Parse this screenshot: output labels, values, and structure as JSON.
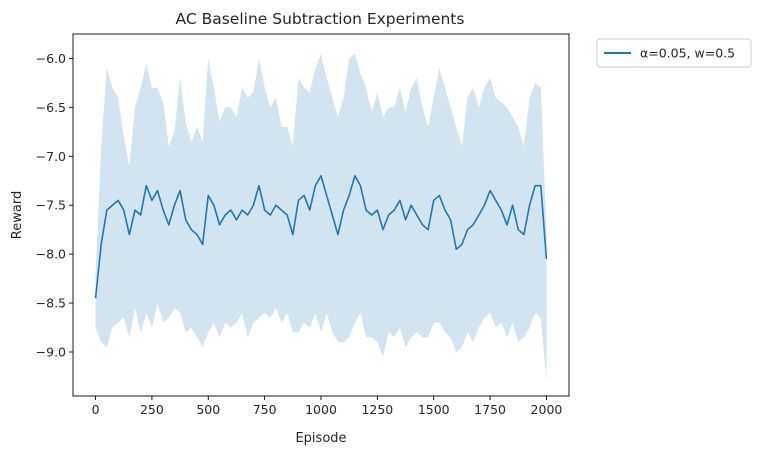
{
  "chart_data": {
    "type": "line",
    "title": "AC Baseline Subtraction Experiments",
    "xlabel": "Episode",
    "ylabel": "Reward",
    "xlim": [
      -100,
      2100
    ],
    "ylim": [
      -9.45,
      -5.75
    ],
    "xticks": [
      0,
      250,
      500,
      750,
      1000,
      1250,
      1500,
      1750,
      2000
    ],
    "xtick_labels": [
      "0",
      "250",
      "500",
      "750",
      "1000",
      "1250",
      "1500",
      "1750",
      "2000"
    ],
    "yticks": [
      -9.0,
      -8.5,
      -8.0,
      -7.5,
      -7.0,
      -6.5,
      -6.0
    ],
    "ytick_labels": [
      "−9.0",
      "−8.5",
      "−8.0",
      "−7.5",
      "−7.0",
      "−6.5",
      "−6.0"
    ],
    "grid": false,
    "legend_position": "outside-top-right",
    "series": [
      {
        "name": "α=0.05, w=0.5",
        "color": "#1f77b4",
        "band_color": "#1f77b4",
        "x": [
          0,
          25,
          50,
          75,
          100,
          125,
          150,
          175,
          200,
          225,
          250,
          275,
          300,
          325,
          350,
          375,
          400,
          425,
          450,
          475,
          500,
          525,
          550,
          575,
          600,
          625,
          650,
          675,
          700,
          725,
          750,
          775,
          800,
          825,
          850,
          875,
          900,
          925,
          950,
          975,
          1000,
          1025,
          1050,
          1075,
          1100,
          1125,
          1150,
          1175,
          1200,
          1225,
          1250,
          1275,
          1300,
          1325,
          1350,
          1375,
          1400,
          1425,
          1450,
          1475,
          1500,
          1525,
          1550,
          1575,
          1600,
          1625,
          1650,
          1675,
          1700,
          1725,
          1750,
          1775,
          1800,
          1825,
          1850,
          1875,
          1900,
          1925,
          1950,
          1975,
          2000
        ],
        "mean": [
          -8.45,
          -7.9,
          -7.55,
          -7.5,
          -7.45,
          -7.55,
          -7.8,
          -7.55,
          -7.6,
          -7.3,
          -7.45,
          -7.35,
          -7.55,
          -7.7,
          -7.5,
          -7.35,
          -7.65,
          -7.75,
          -7.8,
          -7.9,
          -7.4,
          -7.5,
          -7.7,
          -7.6,
          -7.55,
          -7.65,
          -7.55,
          -7.6,
          -7.5,
          -7.3,
          -7.55,
          -7.6,
          -7.5,
          -7.55,
          -7.6,
          -7.8,
          -7.45,
          -7.4,
          -7.55,
          -7.3,
          -7.2,
          -7.4,
          -7.6,
          -7.8,
          -7.55,
          -7.4,
          -7.2,
          -7.3,
          -7.55,
          -7.6,
          -7.55,
          -7.75,
          -7.6,
          -7.55,
          -7.45,
          -7.65,
          -7.5,
          -7.6,
          -7.7,
          -7.75,
          -7.45,
          -7.4,
          -7.55,
          -7.65,
          -7.95,
          -7.9,
          -7.75,
          -7.7,
          -7.6,
          -7.5,
          -7.35,
          -7.45,
          -7.55,
          -7.7,
          -7.5,
          -7.75,
          -7.8,
          -7.5,
          -7.3,
          -7.3,
          -8.05
        ],
        "upper": [
          -8.2,
          -6.9,
          -6.1,
          -6.3,
          -6.4,
          -6.8,
          -7.1,
          -6.5,
          -6.3,
          -6.05,
          -6.3,
          -6.3,
          -6.45,
          -6.9,
          -6.75,
          -6.2,
          -6.65,
          -6.85,
          -6.7,
          -6.85,
          -6.0,
          -6.3,
          -6.65,
          -6.5,
          -6.5,
          -6.6,
          -6.3,
          -6.4,
          -6.35,
          -6.0,
          -6.3,
          -6.5,
          -6.4,
          -6.7,
          -6.7,
          -6.9,
          -6.2,
          -6.3,
          -6.35,
          -6.1,
          -5.95,
          -6.2,
          -6.4,
          -6.6,
          -6.4,
          -6.0,
          -5.95,
          -6.15,
          -6.3,
          -6.55,
          -6.35,
          -6.6,
          -6.5,
          -6.5,
          -6.3,
          -6.55,
          -6.3,
          -6.2,
          -6.5,
          -6.7,
          -6.4,
          -6.1,
          -6.3,
          -6.5,
          -6.7,
          -6.9,
          -6.4,
          -6.3,
          -6.5,
          -6.3,
          -6.2,
          -6.4,
          -6.45,
          -6.5,
          -6.6,
          -6.7,
          -6.9,
          -6.4,
          -6.25,
          -6.3,
          -7.75
        ],
        "lower": [
          -8.75,
          -8.9,
          -8.95,
          -8.75,
          -8.7,
          -8.65,
          -8.85,
          -8.55,
          -8.8,
          -8.6,
          -8.75,
          -8.5,
          -8.7,
          -8.65,
          -8.55,
          -8.6,
          -8.8,
          -8.75,
          -8.85,
          -8.95,
          -8.8,
          -8.7,
          -8.85,
          -8.7,
          -8.75,
          -8.7,
          -8.6,
          -8.85,
          -8.7,
          -8.65,
          -8.6,
          -8.65,
          -8.55,
          -8.7,
          -8.6,
          -8.8,
          -8.8,
          -8.7,
          -8.75,
          -8.6,
          -8.8,
          -8.6,
          -8.8,
          -8.9,
          -8.9,
          -8.85,
          -8.7,
          -8.6,
          -8.85,
          -8.85,
          -8.9,
          -9.05,
          -8.8,
          -8.85,
          -8.75,
          -8.95,
          -8.85,
          -8.8,
          -8.85,
          -8.85,
          -8.7,
          -8.7,
          -8.8,
          -8.85,
          -9.0,
          -8.95,
          -8.8,
          -8.9,
          -8.75,
          -8.65,
          -8.6,
          -8.75,
          -8.7,
          -8.85,
          -8.7,
          -8.9,
          -8.85,
          -8.75,
          -8.6,
          -8.65,
          -9.3
        ]
      }
    ]
  }
}
